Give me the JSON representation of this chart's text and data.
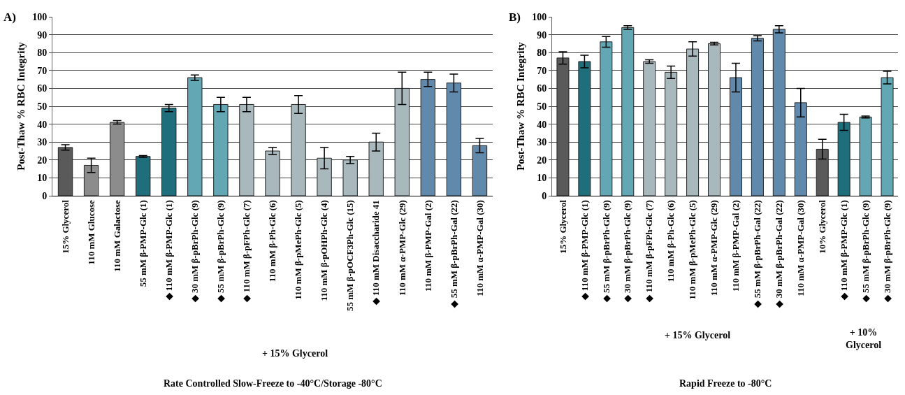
{
  "chart_data": [
    {
      "type": "bar",
      "title": "A)",
      "ylabel": "Post-Thaw % RBC Integrity",
      "categories": [
        "15% Glycerol",
        "110 mM Glucose",
        "110 mM Galactose",
        "55 mM β-PMP-Glc (1)",
        "◆ 110 mM β-PMP-Glc (1)",
        "◆ 30 mM β-pBrPh-Glc (9)",
        "◆ 55 mM β-pBrPh-Glc (9)",
        "◆ 110 mM β-pFPh-Glc (7)",
        "110 mM β-Ph-Glc (6)",
        "110 mM β-pMePh-Glc (5)",
        "110 mM β-pOHPh-Glc (4)",
        "55 mM β-pOCF3Ph-Glc (15)",
        "◆ 110 mM Disaccharide 41",
        "110 mM α-PMP-Glc (29)",
        "110 mM β-PMP-Gal (2)",
        "◆ 55 mM β-pBrPh-Gal (22)",
        "110 mM α-PMP-Gal (30)"
      ],
      "values": [
        27,
        17,
        41,
        22,
        49,
        66,
        51,
        51,
        25,
        51,
        21,
        20,
        30,
        60,
        65,
        63,
        28
      ],
      "errors": [
        1.5,
        4,
        1,
        0.5,
        2,
        1.5,
        4,
        4,
        2,
        5,
        6,
        2,
        5,
        9,
        4,
        5,
        4
      ],
      "colors": [
        "#5a5a5a",
        "#8c8c8c",
        "#8c8c8c",
        "#1f6e7c",
        "#1f6e7c",
        "#62a7b3",
        "#62a7b3",
        "#a9b8bd",
        "#a9b8bd",
        "#a9b8bd",
        "#a9b8bd",
        "#a9b8bd",
        "#a9b8bd",
        "#a9b8bd",
        "#6189ab",
        "#6189ab",
        "#6189ab"
      ],
      "ylim": [
        0,
        100
      ],
      "yticks": [
        0,
        10,
        20,
        30,
        40,
        50,
        60,
        70,
        80,
        90,
        100
      ],
      "grid": "y",
      "legend": false,
      "annotations": [
        "+ 15% Glycerol",
        "Rate Controlled Slow-Freeze to -40°C/Storage -80°C"
      ]
    },
    {
      "type": "bar",
      "title": "B)",
      "ylabel": "Post-Thaw % RBC Integrity",
      "categories": [
        "15% Glycerol",
        "◆ 110 mM β-PMP-Glc (1)",
        "◆ 55 mM β-pBrPh-Glc (9)",
        "◆ 30 mM β-pBrPh-Glc (9)",
        "◆ 110 mM β-pFPh-Glc (7)",
        "110 mM β-Ph-Glc (6)",
        "110 mM β-pMePh-Glc (5)",
        "110 mM α-PMP-Glc (29)",
        "110 mM β-PMP-Gal (2)",
        "◆ 55 mM β-pBrPh-Gal (22)",
        "◆ 30 mM β-pBrPh-Gal (22)",
        "110 mM α-PMP-Gal (30)",
        "10% Glycerol",
        "◆ 110 mM β-PMP-Glc (1)",
        "◆ 55 mM β-pBrPh-Glc (9)",
        "◆ 30 mM β-pBrPh-Glc (9)"
      ],
      "values": [
        77,
        75,
        86,
        94,
        75,
        69,
        82,
        85,
        66,
        88,
        93,
        52,
        26,
        41,
        44,
        66
      ],
      "errors": [
        3.5,
        3.5,
        3,
        1,
        1,
        3.5,
        4,
        0.7,
        8,
        1.5,
        2,
        8,
        5.5,
        4.5,
        0.5,
        3.5
      ],
      "colors": [
        "#5a5a5a",
        "#1f6e7c",
        "#62a7b3",
        "#62a7b3",
        "#a9b8bd",
        "#a9b8bd",
        "#a9b8bd",
        "#a9b8bd",
        "#6189ab",
        "#6189ab",
        "#6189ab",
        "#6189ab",
        "#5a5a5a",
        "#1f6e7c",
        "#62a7b3",
        "#62a7b3"
      ],
      "ylim": [
        0,
        100
      ],
      "yticks": [
        0,
        10,
        20,
        30,
        40,
        50,
        60,
        70,
        80,
        90,
        100
      ],
      "grid": "y",
      "legend": false,
      "annotations": [
        "+ 15% Glycerol",
        "+ 10%\nGlycerol",
        "Rapid Freeze to -80°C"
      ]
    }
  ]
}
